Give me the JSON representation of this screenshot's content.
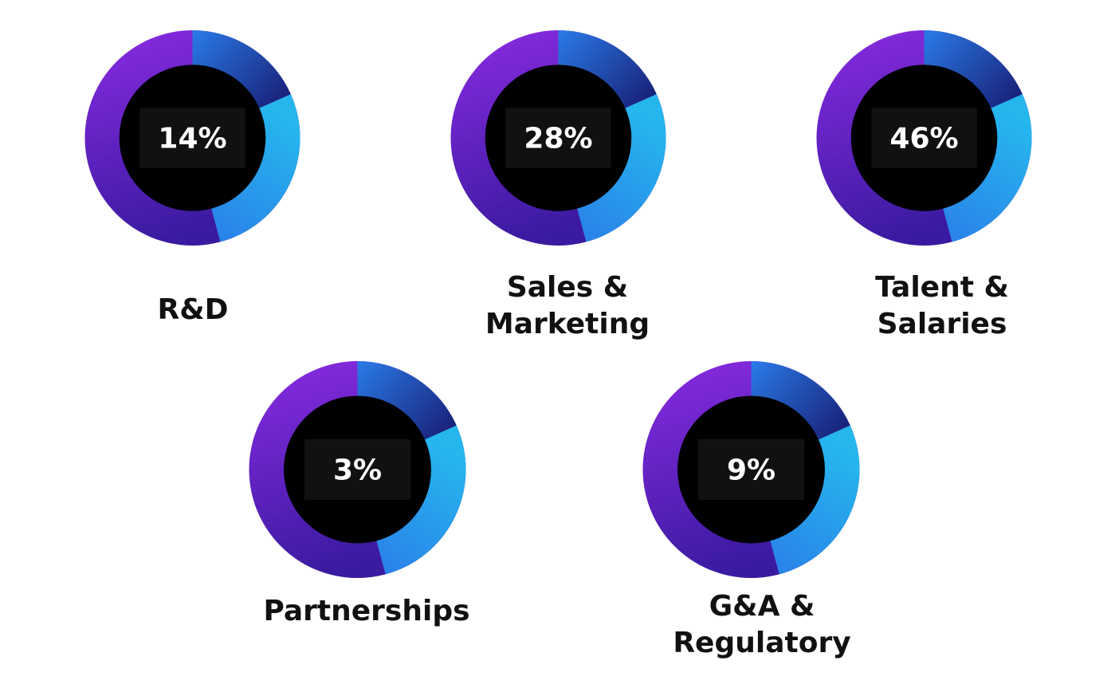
{
  "chart_data": [
    {
      "type": "pie",
      "label": "R&D",
      "value_text": "14%",
      "value": 14
    },
    {
      "type": "pie",
      "label": "Sales &\nMarketing",
      "value_text": "28%",
      "value": 28
    },
    {
      "type": "pie",
      "label": "Talent &\nSalaries",
      "value_text": "46%",
      "value": 46
    },
    {
      "type": "pie",
      "label": "Partnerships",
      "value_text": "3%",
      "value": 3
    },
    {
      "type": "pie",
      "label": "G&A &\nRegulatory",
      "value_text": "9%",
      "value": 9
    }
  ],
  "colors": {
    "ring_purple_light": "#8a2be2",
    "ring_purple_dark": "#3a1aa0",
    "ring_blue": "#2a7be8",
    "ring_cyan": "#26b6ee",
    "ring_navy": "#140a5c",
    "center": "#000000",
    "value_box": "#111111",
    "value_text": "#ffffff",
    "label_text": "#111111"
  }
}
